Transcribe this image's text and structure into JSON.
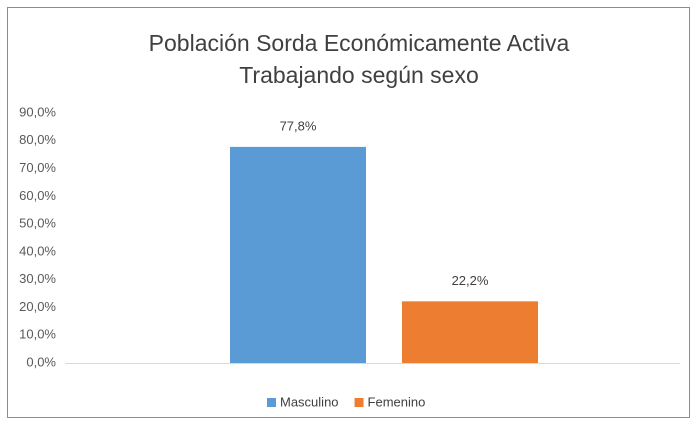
{
  "chart_data": {
    "type": "bar",
    "title": [
      "Población Sorda Económicamente Activa",
      "Trabajando según sexo"
    ],
    "categories": [
      null
    ],
    "series": [
      {
        "name": "Masculino",
        "color": "#5b9bd5",
        "values": [
          77.8
        ],
        "value_labels": [
          "77,8%"
        ]
      },
      {
        "name": "Femenino",
        "color": "#ed7d31",
        "values": [
          22.2
        ],
        "value_labels": [
          "22,2%"
        ]
      }
    ],
    "ylim": [
      0,
      90
    ],
    "yticks": [
      {
        "value": 0,
        "label": "0,0%"
      },
      {
        "value": 10,
        "label": "10,0%"
      },
      {
        "value": 20,
        "label": "20,0%"
      },
      {
        "value": 30,
        "label": "30,0%"
      },
      {
        "value": 40,
        "label": "40,0%"
      },
      {
        "value": 50,
        "label": "50,0%"
      },
      {
        "value": 60,
        "label": "60,0%"
      },
      {
        "value": 70,
        "label": "70,0%"
      },
      {
        "value": 80,
        "label": "80,0%"
      },
      {
        "value": 90,
        "label": "90,0%"
      }
    ],
    "grid": false,
    "legend": "bottom"
  }
}
